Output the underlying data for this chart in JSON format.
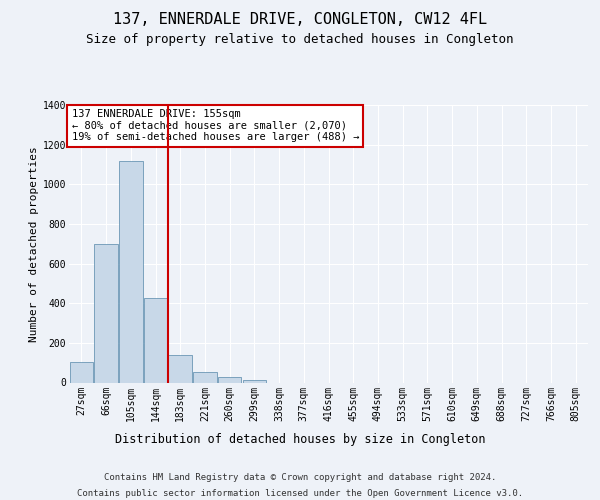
{
  "title": "137, ENNERDALE DRIVE, CONGLETON, CW12 4FL",
  "subtitle": "Size of property relative to detached houses in Congleton",
  "xlabel": "Distribution of detached houses by size in Congleton",
  "ylabel": "Number of detached properties",
  "footer_line1": "Contains HM Land Registry data © Crown copyright and database right 2024.",
  "footer_line2": "Contains public sector information licensed under the Open Government Licence v3.0.",
  "categories": [
    "27sqm",
    "66sqm",
    "105sqm",
    "144sqm",
    "183sqm",
    "221sqm",
    "260sqm",
    "299sqm",
    "338sqm",
    "377sqm",
    "416sqm",
    "455sqm",
    "494sqm",
    "533sqm",
    "571sqm",
    "610sqm",
    "649sqm",
    "688sqm",
    "727sqm",
    "766sqm",
    "805sqm"
  ],
  "values": [
    105,
    700,
    1120,
    425,
    140,
    55,
    30,
    15,
    0,
    0,
    0,
    0,
    0,
    0,
    0,
    0,
    0,
    0,
    0,
    0,
    0
  ],
  "bar_color": "#c8d8e8",
  "bar_edge_color": "#5588aa",
  "vline_x": 3.5,
  "vline_color": "#cc0000",
  "annotation_text": "137 ENNERDALE DRIVE: 155sqm\n← 80% of detached houses are smaller (2,070)\n19% of semi-detached houses are larger (488) →",
  "annotation_box_color": "#cc0000",
  "annotation_text_color": "#000000",
  "ylim": [
    0,
    1400
  ],
  "yticks": [
    0,
    200,
    400,
    600,
    800,
    1000,
    1200,
    1400
  ],
  "bg_color": "#eef2f8",
  "plot_bg_color": "#eef2f8",
  "grid_color": "#ffffff",
  "title_fontsize": 11,
  "subtitle_fontsize": 9,
  "axis_label_fontsize": 8.5,
  "tick_fontsize": 7,
  "annotation_fontsize": 7.5,
  "footer_fontsize": 6.5,
  "ylabel_fontsize": 8
}
